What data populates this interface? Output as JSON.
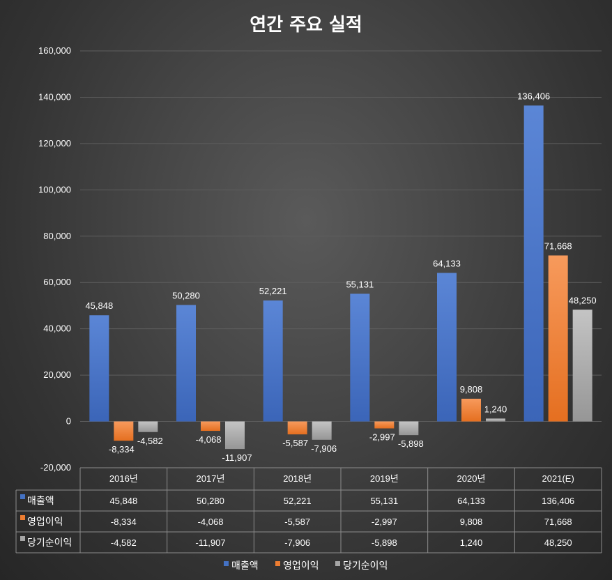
{
  "colors": {
    "series": [
      "#4472c4",
      "#ed7d31",
      "#a5a5a5"
    ],
    "grid": "#5e5e5e",
    "table_border": "#8c8c8c",
    "text": "#ffffff"
  },
  "chart_data": {
    "type": "bar",
    "title": "연간 주요 실적",
    "categories": [
      "2016년",
      "2017년",
      "2018년",
      "2019년",
      "2020년",
      "2021(E)"
    ],
    "series": [
      {
        "name": "매출액",
        "values": [
          45848,
          50280,
          52221,
          55131,
          64133,
          136406
        ],
        "labels": [
          "45,848",
          "50,280",
          "52,221",
          "55,131",
          "64,133",
          "136,406"
        ]
      },
      {
        "name": "영업이익",
        "values": [
          -8334,
          -4068,
          -5587,
          -2997,
          9808,
          71668
        ],
        "labels": [
          "-8,334",
          "-4,068",
          "-5,587",
          "-2,997",
          "9,808",
          "71,668"
        ]
      },
      {
        "name": "당기순이익",
        "values": [
          -4582,
          -11907,
          -7906,
          -5898,
          1240,
          48250
        ],
        "labels": [
          "-4,582",
          "-11,907",
          "-7,906",
          "-5,898",
          "1,240",
          "48,250"
        ]
      }
    ],
    "ylim": [
      -20000,
      160000
    ],
    "yticks": [
      -20000,
      0,
      20000,
      40000,
      60000,
      80000,
      100000,
      120000,
      140000,
      160000
    ],
    "ytick_labels": [
      "-20,000",
      "0",
      "20,000",
      "40,000",
      "60,000",
      "80,000",
      "100,000",
      "120,000",
      "140,000",
      "160,000"
    ],
    "grid": true,
    "data_table": true,
    "legend": "bottom"
  }
}
